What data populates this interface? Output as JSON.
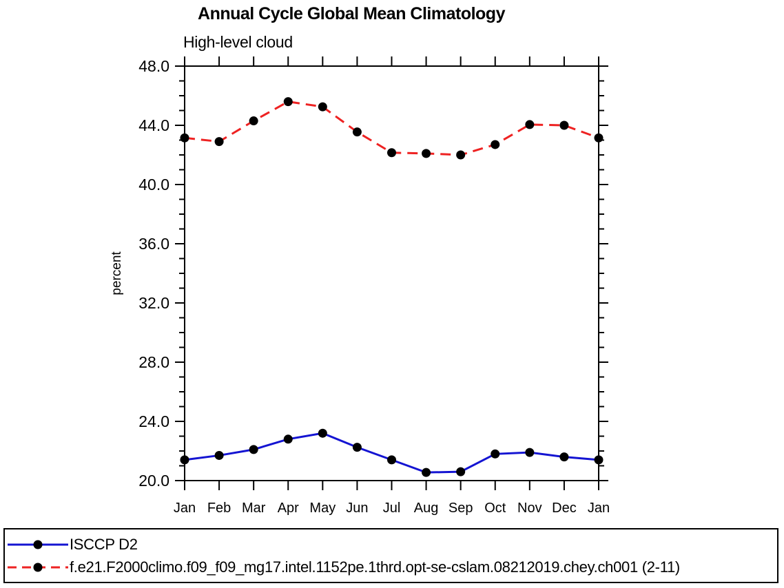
{
  "title": "Annual Cycle Global Mean Climatology",
  "subtitle": "High-level cloud",
  "legend": {
    "items": [
      {
        "id": "isccp-d2",
        "label": "ISCCP D2",
        "color": "#1414d2",
        "line": "solid",
        "marker": "circle",
        "marker_color": "#000000"
      },
      {
        "id": "model-run",
        "label": "f.e21.F2000climo.f09_f09_mg17.intel.1152pe.1thrd.opt-se-cslam.08212019.chey.ch001 (2-11)",
        "color": "#ee2222",
        "line": "dashed",
        "marker": "circle",
        "marker_color": "#000000"
      }
    ]
  },
  "chart_data": {
    "type": "line",
    "title": "Annual Cycle Global Mean Climatology",
    "subtitle": "High-level cloud",
    "xlabel": "",
    "ylabel": "percent",
    "x_categories": [
      "Jan",
      "Feb",
      "Mar",
      "Apr",
      "May",
      "Jun",
      "Jul",
      "Aug",
      "Sep",
      "Oct",
      "Nov",
      "Dec",
      "Jan"
    ],
    "ylim": [
      20.0,
      48.0
    ],
    "ytick_step": 4.0,
    "yminor_step": 1.0,
    "ytick_labels": [
      "20.0",
      "24.0",
      "28.0",
      "32.0",
      "36.0",
      "40.0",
      "44.0",
      "48.0"
    ],
    "grid": false,
    "legend_position": "bottom",
    "series": [
      {
        "name": "ISCCP D2",
        "color": "#1414d2",
        "line": "solid",
        "marker": "circle",
        "marker_color": "#000000",
        "values": [
          21.4,
          21.7,
          22.1,
          22.8,
          23.2,
          22.25,
          21.4,
          20.55,
          20.6,
          21.8,
          21.9,
          21.6,
          21.4
        ]
      },
      {
        "name": "f.e21.F2000climo.f09_f09_mg17.intel.1152pe.1thrd.opt-se-cslam.08212019.chey.ch001 (2-11)",
        "color": "#ee2222",
        "line": "dashed",
        "marker": "circle",
        "marker_color": "#000000",
        "values": [
          43.15,
          42.9,
          44.3,
          45.6,
          45.25,
          43.55,
          42.15,
          42.1,
          42.0,
          42.7,
          44.05,
          44.0,
          43.15
        ]
      }
    ]
  }
}
